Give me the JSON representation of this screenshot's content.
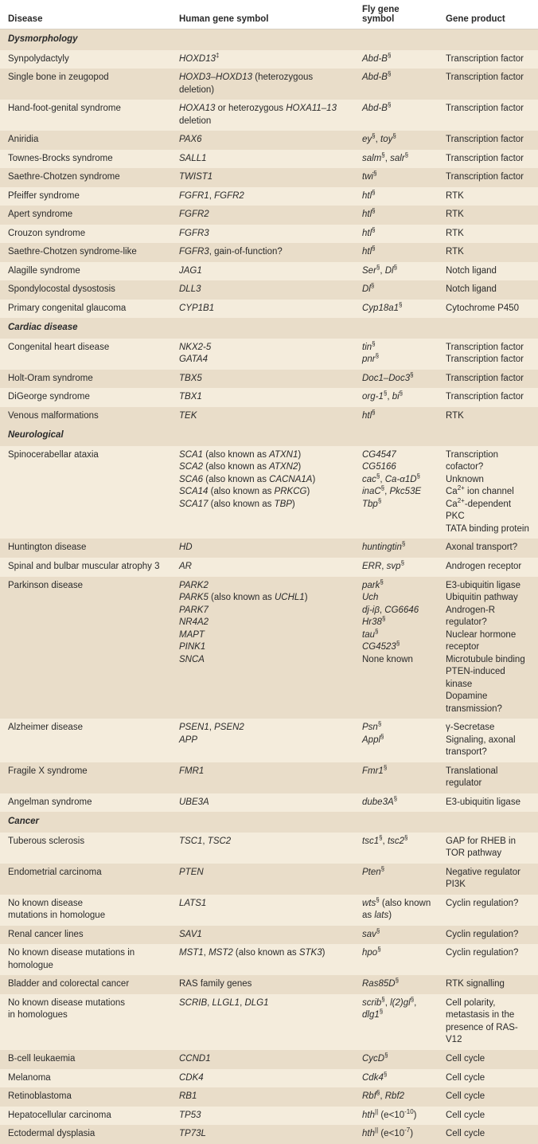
{
  "columns": [
    "Disease",
    "Human gene symbol",
    "Fly gene symbol",
    "Gene product"
  ],
  "colors": {
    "row_light": "#f4ecdc",
    "row_dark": "#e9ddc9",
    "text": "#2a2a2a",
    "border": "#d8cfc1"
  },
  "sections": [
    {
      "title": "Dysmorphology",
      "rows": [
        {
          "disease": "Synpolydactyly",
          "human": "<span class='em'>HOXD13</span><sup>‡</sup>",
          "fly": "<span class='em'>Abd-B</span><sup>§</sup>",
          "product": "Transcription factor"
        },
        {
          "disease": "Single bone in zeugopod",
          "human": "<span class='em'>HOXD3–HOXD13</span> (heterozygous deletion)",
          "fly": "<span class='em'>Abd-B</span><sup>§</sup>",
          "product": "Transcription factor"
        },
        {
          "disease": "Hand-foot-genital syndrome",
          "human": "<span class='em'>HOXA13</span> or heterozygous <span class='em'>HOXA11–13</span> deletion",
          "fly": "<span class='em'>Abd-B</span><sup>§</sup>",
          "product": "Transcription factor"
        },
        {
          "disease": "Aniridia",
          "human": "<span class='em'>PAX6</span>",
          "fly": "<span class='em'>ey</span><sup>§</sup>, <span class='em'>toy</span><sup>§</sup>",
          "product": "Transcription factor"
        },
        {
          "disease": "Townes-Brocks syndrome",
          "human": "<span class='em'>SALL1</span>",
          "fly": "<span class='em'>salm</span><sup>§</sup>, <span class='em'>salr</span><sup>§</sup>",
          "product": "Transcription factor"
        },
        {
          "disease": "Saethre-Chotzen syndrome",
          "human": "<span class='em'>TWIST1</span>",
          "fly": "<span class='em'>twi</span><sup>§</sup>",
          "product": "Transcription factor"
        },
        {
          "disease": "Pfeiffer syndrome",
          "human": "<span class='em'>FGFR1</span>, <span class='em'>FGFR2</span>",
          "fly": "<span class='em'>htl</span><sup>§</sup>",
          "product": "RTK"
        },
        {
          "disease": "Apert syndrome",
          "human": "<span class='em'>FGFR2</span>",
          "fly": "<span class='em'>htl</span><sup>§</sup>",
          "product": "RTK"
        },
        {
          "disease": "Crouzon syndrome",
          "human": "<span class='em'>FGFR3</span>",
          "fly": "<span class='em'>htl</span><sup>§</sup>",
          "product": "RTK"
        },
        {
          "disease": "Saethre-Chotzen syndrome-like",
          "human": "<span class='em'>FGFR3</span>, gain-of-function?",
          "fly": "<span class='em'>htl</span><sup>§</sup>",
          "product": "RTK"
        },
        {
          "disease": "Alagille syndrome",
          "human": "<span class='em'>JAG1</span>",
          "fly": "<span class='em'>Ser</span><sup>§</sup>, <span class='em'>Dl</span><sup>§</sup>",
          "product": "Notch ligand"
        },
        {
          "disease": "Spondylocostal dysostosis",
          "human": "<span class='em'>DLL3</span>",
          "fly": "<span class='em'>Dl</span><sup>§</sup>",
          "product": "Notch ligand"
        },
        {
          "disease": "Primary congenital glaucoma",
          "human": "<span class='em'>CYP1B1</span>",
          "fly": "<span class='em'>Cyp18a1</span><sup>§</sup>",
          "product": "Cytochrome P450"
        }
      ]
    },
    {
      "title": "Cardiac disease",
      "rows": [
        {
          "disease": "Congenital heart disease",
          "human": "<span class='em'>NKX2-5</span><br><span class='em'>GATA4</span>",
          "fly": "<span class='em'>tin</span><sup>§</sup><br><span class='em'>pnr</span><sup>§</sup>",
          "product": "Transcription factor<br>Transcription factor"
        },
        {
          "disease": "Holt-Oram syndrome",
          "human": "<span class='em'>TBX5</span>",
          "fly": "<span class='em'>Doc1–Doc3</span><sup>§</sup>",
          "product": "Transcription factor"
        },
        {
          "disease": "DiGeorge syndrome",
          "human": "<span class='em'>TBX1</span>",
          "fly": "<span class='em'>org-1</span><sup>§</sup>, <span class='em'>bi</span><sup>§</sup>",
          "product": "Transcription factor"
        },
        {
          "disease": "Venous malformations",
          "human": "<span class='em'>TEK</span>",
          "fly": "<span class='em'>htl</span><sup>§</sup>",
          "product": "RTK"
        }
      ]
    },
    {
      "title": "Neurological",
      "rows": [
        {
          "disease": "Spinocerabellar ataxia",
          "human": "<span class='em'>SCA1</span> (also known as <span class='em'>ATXN1</span>)<br><span class='em'>SCA2</span> (also known as <span class='em'>ATXN2</span>)<br><span class='em'>SCA6</span> (also known as <span class='em'>CACNA1A</span>)<br><span class='em'>SCA14</span> (also known as <span class='em'>PRKCG</span>)<br><span class='em'>SCA17</span> (also known as <span class='em'>TBP</span>)",
          "fly": "<span class='em'>CG4547</span><br><span class='em'>CG5166</span><br><span class='em'>cac</span><sup>§</sup>, <span class='em'>Ca-α1D</span><sup>§</sup><br><span class='em'>inaC</span><sup>§</sup>, <span class='em'>Pkc53E</span><br><span class='em'>Tbp</span><sup>§</sup>",
          "product": "Transcription cofactor?<br>Unknown<br>Ca<sup>2+</sup> ion channel<br>Ca<sup>2+</sup>-dependent PKC<br>TATA binding protein"
        },
        {
          "disease": "Huntington disease",
          "human": "<span class='em'>HD</span>",
          "fly": "<span class='em'>huntingtin</span><sup>§</sup>",
          "product": "Axonal transport?"
        },
        {
          "disease": "Spinal and bulbar muscular atrophy 3",
          "human": "<span class='em'>AR</span>",
          "fly": "<span class='em'>ERR</span>, <span class='em'>svp</span><sup>§</sup>",
          "product": "Androgen receptor"
        },
        {
          "disease": "Parkinson disease",
          "human": "<span class='em'>PARK2</span><br><span class='em'>PARK5</span> (also known as <span class='em'>UCHL1</span>)<br><span class='em'>PARK7</span><br><span class='em'>NR4A2</span><br><span class='em'>MAPT</span><br><span class='em'>PINK1</span><br><span class='em'>SNCA</span>",
          "fly": "<span class='em'>park</span><sup>§</sup><br><span class='em'>Uch</span><br><span class='em'>dj-iβ</span>, <span class='em'>CG6646</span><br><span class='em'>Hr38</span><sup>§</sup><br><span class='em'>tau</span><sup>§</sup><br><span class='em'>CG4523</span><sup>§</sup><br>None known",
          "product": "E3-ubiquitin ligase<br>Ubiquitin pathway<br>Androgen-R regulator?<br>Nuclear hormone receptor<br>Microtubule binding<br>PTEN-induced kinase<br>Dopamine transmission?"
        },
        {
          "disease": "Alzheimer disease",
          "human": "<span class='em'>PSEN1</span>, <span class='em'>PSEN2</span><br><span class='em'>APP</span>",
          "fly": "<span class='em'>Psn</span><sup>§</sup><br><span class='em'>Appl</span><sup>§</sup>",
          "product": "γ-Secretase<br>Signaling, axonal transport?"
        },
        {
          "disease": "Fragile X syndrome",
          "human": "<span class='em'>FMR1</span>",
          "fly": "<span class='em'>Fmr1</span><sup>§</sup>",
          "product": "Translational regulator"
        },
        {
          "disease": "Angelman syndrome",
          "human": "<span class='em'>UBE3A</span>",
          "fly": "<span class='em'>dube3A</span><sup>§</sup>",
          "product": "E3-ubiquitin ligase"
        }
      ]
    },
    {
      "title": "Cancer",
      "rows": [
        {
          "disease": "Tuberous sclerosis",
          "human": "<span class='em'>TSC1</span>, <span class='em'>TSC2</span>",
          "fly": "<span class='em'>tsc1</span><sup>§</sup>, <span class='em'>tsc2</span><sup>§</sup>",
          "product": "GAP for RHEB in TOR pathway"
        },
        {
          "disease": "Endometrial carcinoma",
          "human": "<span class='em'>PTEN</span>",
          "fly": "<span class='em'>Pten</span><sup>§</sup>",
          "product": "Negative regulator PI3K"
        },
        {
          "disease": "No known disease<br>mutations in homologue",
          "human": "<span class='em'>LATS1</span>",
          "fly": "<span class='em'>wts</span><sup>§</sup> (also known<br>as <span class='em'>lats</span>)",
          "product": "Cyclin regulation?"
        },
        {
          "disease": "Renal cancer lines",
          "human": "<span class='em'>SAV1</span>",
          "fly": "<span class='em'>sav</span><sup>§</sup>",
          "product": "Cyclin regulation?"
        },
        {
          "disease": "No known disease mutations in homologue",
          "human": "<span class='em'>MST1</span>, <span class='em'>MST2</span> (also known as <span class='em'>STK3</span>)",
          "fly": "<span class='em'>hpo</span><sup>§</sup>",
          "product": "Cyclin regulation?"
        },
        {
          "disease": "Bladder and colorectal cancer",
          "human": "RAS family genes",
          "fly": "<span class='em'>Ras85D</span><sup>§</sup>",
          "product": "RTK signalling"
        },
        {
          "disease": "No known disease mutations<br>in homologues",
          "human": "<span class='em'>SCRIB</span>, <span class='em'>LLGL1</span>, <span class='em'>DLG1</span>",
          "fly": "<span class='em'>scrib</span><sup>§</sup>, <span class='em'>l(2)gl</span><sup>§</sup>, <span class='em'>dlg1</span><sup>§</sup>",
          "product": "Cell polarity, metastasis in the presence of RAS-V12"
        },
        {
          "disease": "B-cell leukaemia",
          "human": "<span class='em'>CCND1</span>",
          "fly": "<span class='em'>CycD</span><sup>§</sup>",
          "product": "Cell cycle"
        },
        {
          "disease": "Melanoma",
          "human": "<span class='em'>CDK4</span>",
          "fly": "<span class='em'>Cdk4</span><sup>§</sup>",
          "product": "Cell cycle"
        },
        {
          "disease": "Retinoblastoma",
          "human": "<span class='em'>RB1</span>",
          "fly": "<span class='em'>Rbf</span><sup>§</sup>, <span class='em'>Rbf2</span>",
          "product": "Cell cycle"
        },
        {
          "disease": "Hepatocellular carcinoma",
          "human": "<span class='em'>TP53</span>",
          "fly": "<span class='em'>hth</span><sup>||</sup> (e&lt;10<sup>-10</sup>)",
          "product": "Cell cycle"
        },
        {
          "disease": "Ectodermal dysplasia",
          "human": "<span class='em'>TP73L</span>",
          "fly": "<span class='em'>hth</span><sup>||</sup> (e&lt;10<sup>-7</sup>)",
          "product": "Cell cycle"
        }
      ]
    }
  ]
}
